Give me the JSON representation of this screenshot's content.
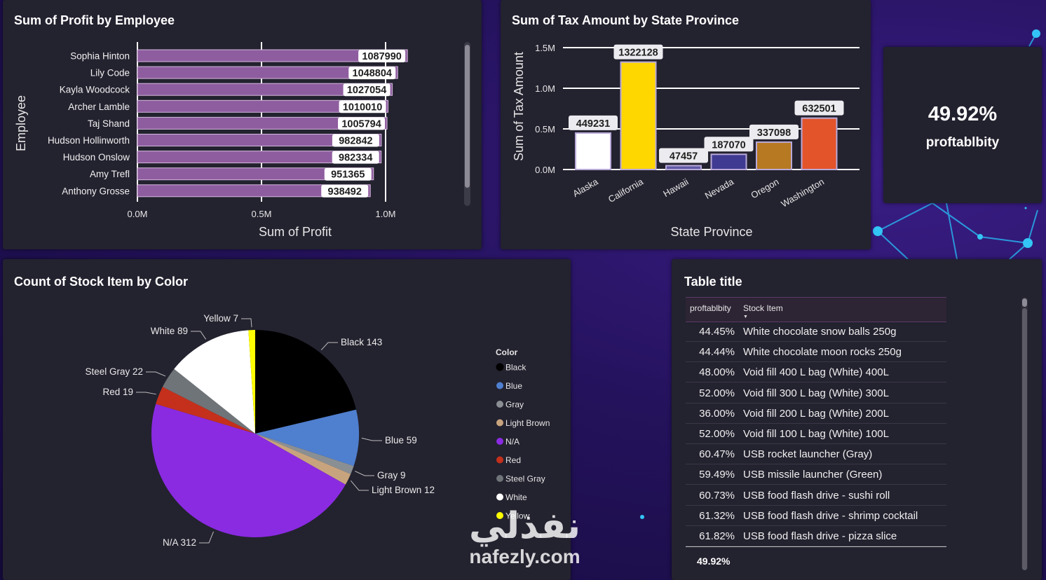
{
  "watermark": {
    "arabic": "نفذلي",
    "latin": "nafezly.com"
  },
  "profit_chart": {
    "title": "Sum of Profit by Employee",
    "chart_data": {
      "type": "bar",
      "orientation": "horizontal",
      "title": "Sum of Profit by Employee",
      "xlabel": "Sum of Profit",
      "ylabel": "Employee",
      "categories": [
        "Sophia Hinton",
        "Lily Code",
        "Kayla Woodcock",
        "Archer Lamble",
        "Taj Shand",
        "Hudson Hollinworth",
        "Hudson Onslow",
        "Amy Trefl",
        "Anthony Grosse"
      ],
      "values": [
        1087990,
        1048804,
        1027054,
        1010010,
        1005794,
        982842,
        982334,
        951365,
        938492
      ],
      "xlim": [
        0,
        1200000
      ],
      "ticks": [
        0,
        500000,
        1000000
      ],
      "tick_labels": [
        "0.0M",
        "0.5M",
        "1.0M"
      ],
      "bar_color": "#8e5d9f",
      "grid": true
    }
  },
  "tax_chart": {
    "title": "Sum of Tax Amount by State Province",
    "chart_data": {
      "type": "bar",
      "title": "Sum of Tax Amount by State Province",
      "xlabel": "State Province",
      "ylabel": "Sum of Tax Amount",
      "categories": [
        "Alaska",
        "California",
        "Hawaii",
        "Nevada",
        "Oregon",
        "Washington"
      ],
      "values": [
        449231,
        1322128,
        47457,
        187070,
        337098,
        632501
      ],
      "colors": [
        "#ffffff",
        "#ffd700",
        "#5f5aa7",
        "#3f3b93",
        "#b77a22",
        "#e3542a"
      ],
      "ylim": [
        0,
        1500000
      ],
      "ticks": [
        0,
        500000,
        1000000,
        1500000
      ],
      "tick_labels": [
        "0.0M",
        "0.5M",
        "1.0M",
        "1.5M"
      ],
      "grid": true
    }
  },
  "kpi": {
    "value": "49.92%",
    "label": "proftablbity"
  },
  "pie_chart": {
    "title": "Count of Stock Item by Color",
    "legend_title": "Color",
    "legend_items": [
      "Black",
      "Blue",
      "Gray",
      "Light Brown",
      "N/A",
      "Red",
      "Steel Gray",
      "White",
      "Yellow"
    ],
    "chart_data": {
      "type": "pie",
      "title": "Count of Stock Item by Color",
      "legend_title": "Color",
      "legend_position": "right",
      "slices": [
        {
          "label": "Black",
          "value": 143,
          "color": "#000000"
        },
        {
          "label": "Blue",
          "value": 59,
          "color": "#4f7fcf"
        },
        {
          "label": "Gray",
          "value": 9,
          "color": "#8a8f94"
        },
        {
          "label": "Light Brown",
          "value": 12,
          "color": "#c8a47e"
        },
        {
          "label": "N/A",
          "value": 312,
          "color": "#8a2be2"
        },
        {
          "label": "Red",
          "value": 19,
          "color": "#c4301c"
        },
        {
          "label": "Steel Gray",
          "value": 22,
          "color": "#6f7478"
        },
        {
          "label": "White",
          "value": 89,
          "color": "#ffffff"
        },
        {
          "label": "Yellow",
          "value": 7,
          "color": "#ffff00"
        }
      ],
      "slice_labels": [
        "Black 143",
        "Blue 59",
        "Gray 9",
        "Light Brown 12",
        "N/A 312",
        "Red 19",
        "Steel Gray 22",
        "White 89",
        "Yellow 7"
      ]
    }
  },
  "table": {
    "title": "Table title",
    "columns": [
      "proftablbity",
      "Stock Item"
    ],
    "rows": [
      [
        "44.45%",
        "White chocolate snow balls 250g"
      ],
      [
        "44.44%",
        "White chocolate moon rocks 250g"
      ],
      [
        "48.00%",
        "Void fill 400 L bag (White) 400L"
      ],
      [
        "52.00%",
        "Void fill 300 L bag (White) 300L"
      ],
      [
        "36.00%",
        "Void fill 200 L bag (White) 200L"
      ],
      [
        "52.00%",
        "Void fill 100 L bag (White) 100L"
      ],
      [
        "60.47%",
        "USB rocket launcher (Gray)"
      ],
      [
        "59.49%",
        "USB missile launcher (Green)"
      ],
      [
        "60.73%",
        "USB food flash drive - sushi roll"
      ],
      [
        "61.32%",
        "USB food flash drive - shrimp cocktail"
      ],
      [
        "61.82%",
        "USB food flash drive - pizza slice"
      ]
    ],
    "total": "49.92%"
  }
}
